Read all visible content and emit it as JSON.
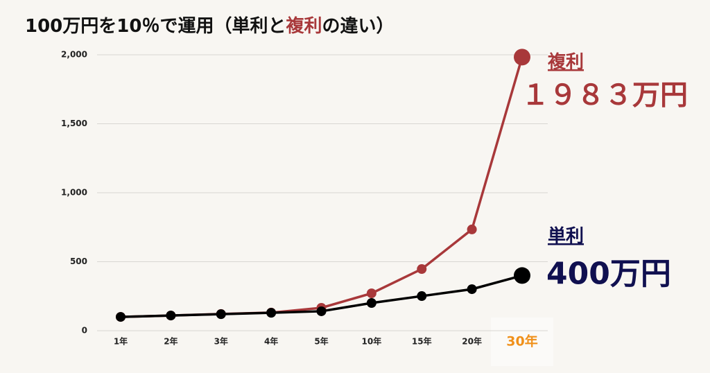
{
  "chart_data": {
    "type": "line",
    "title_parts": [
      "100万円を10％で運用（単利と",
      "複利",
      "の違い）"
    ],
    "categories": [
      "1年",
      "2年",
      "3年",
      "4年",
      "5年",
      "10年",
      "15年",
      "20年",
      "30年"
    ],
    "series": [
      {
        "name": "複利",
        "color": "#a8383a",
        "values": [
          100,
          110,
          121,
          131,
          166,
          271,
          447,
          734,
          1983
        ],
        "value_labels": [
          null,
          null,
          null,
          null,
          null,
          null,
          null,
          null,
          "１９８３万円"
        ]
      },
      {
        "name": "単利",
        "color": "#000000",
        "label_color": "#101050",
        "values": [
          100,
          110,
          120,
          130,
          141,
          201,
          251,
          301,
          400
        ],
        "value_labels": [
          null,
          null,
          null,
          null,
          null,
          null,
          null,
          null,
          "400万円"
        ]
      }
    ],
    "ylim": [
      0,
      2000
    ],
    "yticks": [
      0,
      500,
      {
        "value": 1000,
        "label": "1,000"
      },
      {
        "value": 1500,
        "label": "1,500"
      },
      {
        "value": 2000,
        "label": "2,000"
      }
    ],
    "grid": true
  }
}
